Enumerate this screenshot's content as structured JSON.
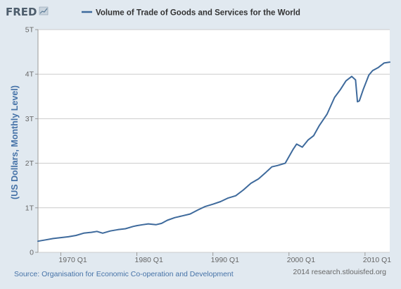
{
  "branding": {
    "logo": "FRED",
    "credit": "2014 research.stlouisfed.org"
  },
  "source": "Source: Organisation for Economic Co-operation and Development",
  "colors": {
    "background": "#e1e9f0",
    "plot_background": "#ffffff",
    "series_line": "#3e6a9c",
    "grid": "#cccccc",
    "label_blue": "#4572a7"
  },
  "chart_data": {
    "type": "line",
    "title": "Volume of Trade of Goods and Services for the World",
    "xlabel": "",
    "ylabel": "(US Dollars, Monthly Level)",
    "grid": true,
    "legend": "top",
    "xlim": [
      1967.0,
      2013.25
    ],
    "ylim": [
      0,
      5
    ],
    "x_ticks": [
      1970,
      1980,
      1990,
      2000,
      2010
    ],
    "x_tick_labels": [
      "1970 Q1",
      "1980 Q1",
      "1990 Q1",
      "2000 Q1",
      "2010 Q1"
    ],
    "y_ticks": [
      0,
      1,
      2,
      3,
      4,
      5
    ],
    "y_tick_labels": [
      "0",
      "1T",
      "2T",
      "3T",
      "4T",
      "5T"
    ],
    "series": [
      {
        "name": "Volume of Trade of Goods and Services for the World",
        "color": "#3e6a9c",
        "x": [
          1967.0,
          1968.0,
          1969.0,
          1970.0,
          1971.0,
          1972.0,
          1973.0,
          1974.0,
          1974.75,
          1975.5,
          1976.5,
          1977.5,
          1978.5,
          1979.5,
          1980.0,
          1980.75,
          1981.5,
          1982.5,
          1983.25,
          1984.0,
          1985.0,
          1986.0,
          1987.0,
          1988.0,
          1989.0,
          1990.0,
          1991.0,
          1992.0,
          1993.0,
          1994.0,
          1995.0,
          1996.0,
          1997.0,
          1997.75,
          1998.5,
          1999.5,
          2000.0,
          2000.5,
          2001.0,
          2001.75,
          2002.5,
          2003.25,
          2004.0,
          2005.0,
          2006.0,
          2006.75,
          2007.5,
          2008.25,
          2008.75,
          2009.0,
          2009.25,
          2009.75,
          2010.5,
          2011.0,
          2011.75,
          2012.5,
          2013.25
        ],
        "y": [
          0.25,
          0.28,
          0.31,
          0.33,
          0.35,
          0.38,
          0.43,
          0.45,
          0.47,
          0.43,
          0.48,
          0.51,
          0.53,
          0.58,
          0.6,
          0.62,
          0.64,
          0.62,
          0.65,
          0.72,
          0.78,
          0.82,
          0.86,
          0.95,
          1.03,
          1.08,
          1.14,
          1.22,
          1.27,
          1.4,
          1.55,
          1.65,
          1.8,
          1.92,
          1.95,
          2.0,
          2.15,
          2.3,
          2.43,
          2.36,
          2.52,
          2.62,
          2.85,
          3.1,
          3.48,
          3.65,
          3.85,
          3.95,
          3.87,
          3.38,
          3.4,
          3.65,
          3.98,
          4.08,
          4.15,
          4.25,
          4.27
        ]
      }
    ]
  }
}
